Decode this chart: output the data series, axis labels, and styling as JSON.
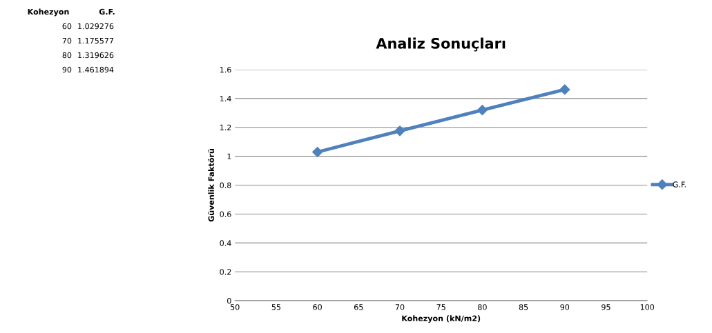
{
  "chart_data": {
    "type": "line",
    "title": "Analiz Sonuçları",
    "xlabel": "Kohezyon (kN/m2)",
    "ylabel": "Güvenlik Faktörü",
    "x": [
      60,
      70,
      80,
      90
    ],
    "series": [
      {
        "name": "G.F.",
        "color": "#4f81bd",
        "values": [
          1.029276,
          1.175577,
          1.319626,
          1.461894
        ]
      }
    ],
    "annotations": [
      "Kohezyon",
      "G.F.",
      "60",
      "1.029276",
      "70",
      "1.175577",
      "80",
      "1.319626",
      "90",
      "1.461894"
    ],
    "xlim": [
      50,
      100
    ],
    "xticks": [
      50,
      55,
      60,
      65,
      70,
      75,
      80,
      85,
      90,
      95,
      100
    ],
    "ylim": [
      0,
      1.6
    ],
    "yticks": [
      0,
      0.2,
      0.4,
      0.6,
      0.8,
      1,
      1.2,
      1.4,
      1.6
    ],
    "grid": "y",
    "legend": "right",
    "marker": "diamond",
    "line_style": "solid"
  }
}
